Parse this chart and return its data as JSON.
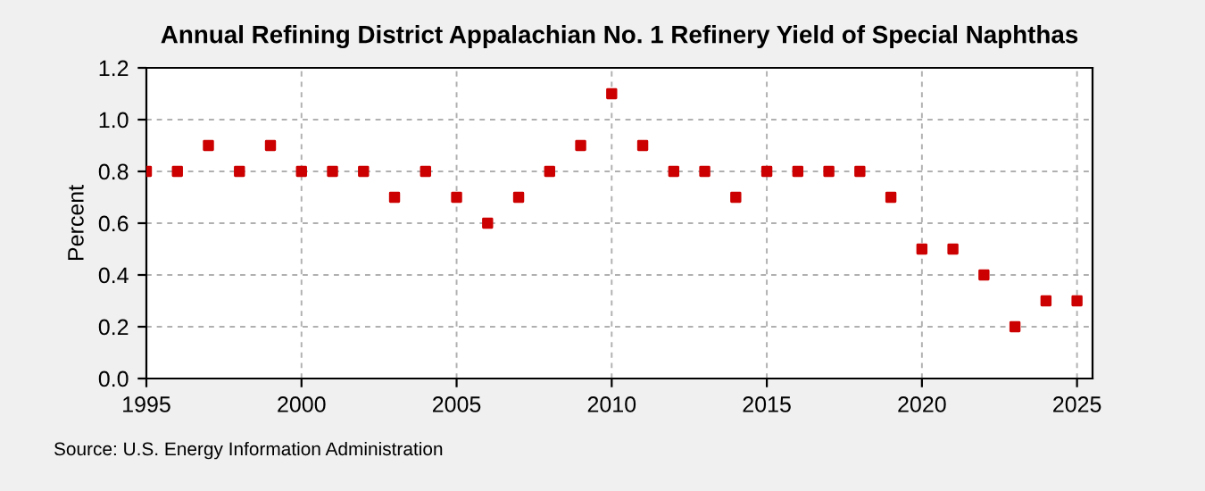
{
  "chart_data": {
    "type": "scatter",
    "title": "Annual Refining District Appalachian No. 1 Refinery Yield of Special Naphthas",
    "ylabel": "Percent",
    "x": [
      1995,
      1996,
      1997,
      1998,
      1999,
      2000,
      2001,
      2002,
      2003,
      2004,
      2005,
      2006,
      2007,
      2008,
      2009,
      2010,
      2011,
      2012,
      2013,
      2014,
      2015,
      2016,
      2017,
      2018,
      2019,
      2020,
      2021,
      2022,
      2023,
      2024,
      2025
    ],
    "series": [
      {
        "color": "#cc0000",
        "values": [
          0.8,
          0.8,
          0.9,
          0.8,
          0.9,
          0.8,
          0.8,
          0.8,
          0.7,
          0.8,
          0.7,
          0.6,
          0.7,
          0.8,
          0.9,
          1.1,
          0.9,
          0.8,
          0.8,
          0.7,
          0.8,
          0.8,
          0.8,
          0.8,
          0.7,
          0.5,
          0.5,
          0.4,
          0.2,
          0.3,
          0.3
        ]
      }
    ],
    "xlim": [
      1995,
      2025.5
    ],
    "xticks": [
      1995,
      2000,
      2005,
      2010,
      2015,
      2020,
      2025
    ],
    "ylim": [
      0,
      1.2
    ],
    "yticks": [
      {
        "value": 0,
        "label": "0.0"
      },
      {
        "value": 0.2,
        "label": "0.2"
      },
      {
        "value": 0.4,
        "label": "0.4"
      },
      {
        "value": 0.6,
        "label": "0.6"
      },
      {
        "value": 0.8,
        "label": "0.8"
      },
      {
        "value": 1.0,
        "label": "1.0"
      },
      {
        "value": 1.2,
        "label": "1.2"
      }
    ],
    "grid": true,
    "marker": "square",
    "annotations": [
      "Source: U.S. Energy Information Administration"
    ]
  }
}
